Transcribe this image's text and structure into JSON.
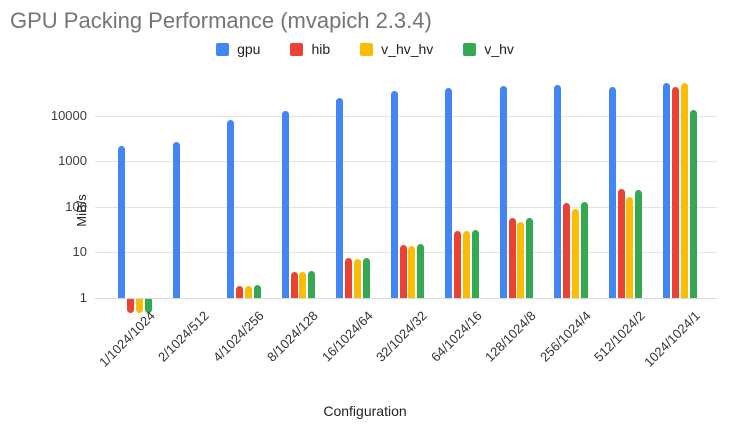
{
  "title": "GPU Packing Performance (mvapich 2.3.4)",
  "chart_data": {
    "type": "bar",
    "scale": "log",
    "title": "GPU Packing Performance (mvapich 2.3.4)",
    "xlabel": "Configuration",
    "ylabel": "MiB/s",
    "y_ticks": [
      1,
      10,
      100,
      1000,
      10000
    ],
    "ylim": [
      0.45,
      80000
    ],
    "grid": true,
    "legend_position": "top",
    "categories": [
      "1/1024/1024",
      "2/1024/512",
      "4/1024/256",
      "8/1024/128",
      "16/1024/64",
      "32/1024/32",
      "64/1024/16",
      "128/1024/8",
      "256/1024/4",
      "512/1024/2",
      "1024/1024/1"
    ],
    "series": [
      {
        "name": "gpu",
        "color": "#4285F4",
        "values": [
          2200,
          2700,
          8000,
          12500,
          24000,
          34000,
          41000,
          45000,
          48000,
          43000,
          52000
        ]
      },
      {
        "name": "hib",
        "color": "#EA4335",
        "values": [
          0.5,
          null,
          1.8,
          3.8,
          7.5,
          14.5,
          30,
          56,
          120,
          250,
          42000
        ]
      },
      {
        "name": "v_hv_hv",
        "color": "#FBBC04",
        "values": [
          0.5,
          null,
          1.8,
          3.7,
          7.3,
          14,
          29,
          47,
          92,
          165,
          53000
        ]
      },
      {
        "name": "v_hv",
        "color": "#34A853",
        "values": [
          0.5,
          null,
          1.9,
          3.9,
          7.6,
          15,
          31,
          56,
          125,
          230,
          13000
        ]
      }
    ]
  }
}
